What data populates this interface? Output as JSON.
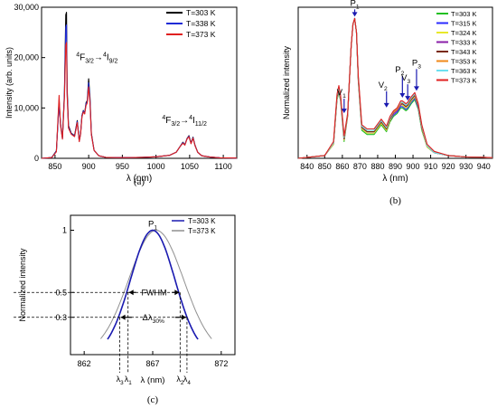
{
  "chart_data": [
    {
      "panel_label": "(a)",
      "type": "line",
      "xlabel": "λ (nm)",
      "ylabel": "Intensity (arb. units)",
      "xlim": [
        830,
        1120
      ],
      "ylim": [
        0,
        30000
      ],
      "xticks": [
        850,
        900,
        950,
        1000,
        1050,
        1100
      ],
      "yticks": [
        0,
        10000,
        20000,
        30000
      ],
      "ytick_labels": [
        "0",
        "10,000",
        "20,000",
        "30,000"
      ],
      "legend_position": "top-right",
      "annotations": [
        {
          "label": "4F3/2→4I9/2",
          "x": 888,
          "y": 19500
        },
        {
          "label": "4F3/2→4I11/2",
          "x": 1045,
          "y": 7000
        }
      ],
      "series": [
        {
          "name": "T=303 K",
          "color": "#000000",
          "x": [
            830,
            845,
            852,
            856,
            858,
            861,
            864,
            866,
            867,
            868,
            870,
            874,
            879,
            883,
            886,
            888,
            890,
            892,
            894,
            896,
            898,
            900,
            902,
            904,
            908,
            915,
            925,
            940,
            960,
            980,
            1000,
            1020,
            1030,
            1035,
            1040,
            1043,
            1046,
            1049,
            1052,
            1055,
            1058,
            1062,
            1068,
            1080,
            1095,
            1120
          ],
          "values": [
            0,
            150,
            1500,
            11500,
            7000,
            4000,
            13000,
            28500,
            29000,
            14000,
            6500,
            5000,
            4500,
            7500,
            3500,
            5000,
            8500,
            9500,
            9000,
            11000,
            11500,
            15800,
            12000,
            5000,
            1600,
            500,
            200,
            150,
            150,
            200,
            300,
            600,
            1200,
            2200,
            3200,
            2700,
            3900,
            4500,
            3000,
            4200,
            2600,
            1200,
            500,
            250,
            100,
            50
          ]
        },
        {
          "name": "T=338 K",
          "color": "#1f2bd6",
          "x": [
            830,
            845,
            852,
            856,
            858,
            861,
            864,
            866,
            867,
            868,
            870,
            874,
            879,
            883,
            886,
            888,
            890,
            892,
            894,
            896,
            898,
            900,
            902,
            904,
            908,
            915,
            925,
            940,
            960,
            980,
            1000,
            1020,
            1030,
            1035,
            1040,
            1043,
            1046,
            1049,
            1052,
            1055,
            1058,
            1062,
            1068,
            1080,
            1095,
            1120
          ],
          "values": [
            0,
            150,
            1400,
            11000,
            6800,
            3900,
            12500,
            26000,
            26500,
            13000,
            6200,
            4900,
            4400,
            7300,
            3400,
            4900,
            8400,
            9400,
            8900,
            10800,
            11300,
            15000,
            11500,
            4800,
            1600,
            500,
            200,
            150,
            150,
            200,
            300,
            600,
            1200,
            2200,
            3100,
            2650,
            3850,
            4400,
            2950,
            4100,
            2550,
            1200,
            500,
            250,
            100,
            50
          ]
        },
        {
          "name": "T=373 K",
          "color": "#e02020",
          "x": [
            830,
            845,
            852,
            856,
            858,
            861,
            864,
            866,
            867,
            868,
            870,
            874,
            879,
            883,
            886,
            888,
            890,
            892,
            894,
            896,
            898,
            900,
            902,
            904,
            908,
            915,
            925,
            940,
            960,
            980,
            1000,
            1020,
            1030,
            1035,
            1040,
            1043,
            1046,
            1049,
            1052,
            1055,
            1058,
            1062,
            1068,
            1080,
            1095,
            1120
          ],
          "values": [
            0,
            150,
            1300,
            12500,
            6600,
            3800,
            12000,
            22500,
            23000,
            12500,
            6000,
            4800,
            4300,
            7100,
            3300,
            4800,
            8200,
            9200,
            8800,
            10500,
            11000,
            14200,
            11000,
            4700,
            1600,
            500,
            200,
            150,
            150,
            200,
            300,
            600,
            1200,
            2200,
            3000,
            2600,
            3800,
            4300,
            2900,
            4000,
            2500,
            1200,
            500,
            250,
            100,
            50
          ]
        }
      ]
    },
    {
      "panel_label": "(b)",
      "type": "line",
      "xlabel": "λ (nm)",
      "ylabel": "Normalized intensity",
      "xlim": [
        835,
        945
      ],
      "ylim": [
        0,
        1.08
      ],
      "xticks": [
        840,
        850,
        860,
        870,
        880,
        890,
        900,
        910,
        920,
        930,
        940
      ],
      "yticks": [],
      "legend_position": "top-right",
      "annotations": [
        {
          "label": "P1",
          "x": 867,
          "y": 1.0
        },
        {
          "label": "V1",
          "x": 861,
          "y": 0.31
        },
        {
          "label": "V2",
          "x": 885,
          "y": 0.35
        },
        {
          "label": "P2",
          "x": 894,
          "y": 0.42
        },
        {
          "label": "V3",
          "x": 897,
          "y": 0.4
        },
        {
          "label": "P3",
          "x": 902,
          "y": 0.47
        }
      ],
      "x": [
        835,
        850,
        855,
        857,
        858,
        859,
        861,
        863,
        865,
        866,
        867,
        868,
        869,
        871,
        874,
        878,
        882,
        885,
        887,
        889,
        891,
        893,
        894,
        895,
        896,
        897,
        898,
        899,
        901,
        903,
        905,
        908,
        912,
        920,
        930,
        945
      ],
      "series": [
        {
          "name": "T=303 K",
          "color": "#22c022",
          "values": [
            0,
            0.02,
            0.1,
            0.42,
            0.47,
            0.41,
            0.12,
            0.3,
            0.8,
            0.96,
            1.0,
            0.9,
            0.55,
            0.2,
            0.17,
            0.17,
            0.24,
            0.19,
            0.26,
            0.3,
            0.32,
            0.36,
            0.36,
            0.35,
            0.34,
            0.35,
            0.37,
            0.39,
            0.42,
            0.35,
            0.2,
            0.08,
            0.04,
            0.02,
            0.01,
            0.005
          ]
        },
        {
          "name": "T=315 K",
          "color": "#2b2bff",
          "values": [
            0,
            0.02,
            0.1,
            0.43,
            0.48,
            0.42,
            0.13,
            0.3,
            0.8,
            0.96,
            1.0,
            0.9,
            0.56,
            0.21,
            0.18,
            0.18,
            0.25,
            0.2,
            0.27,
            0.31,
            0.33,
            0.37,
            0.37,
            0.36,
            0.35,
            0.36,
            0.38,
            0.4,
            0.43,
            0.36,
            0.21,
            0.08,
            0.04,
            0.02,
            0.01,
            0.005
          ]
        },
        {
          "name": "T=324 K",
          "color": "#e8e82a",
          "values": [
            0,
            0.02,
            0.1,
            0.43,
            0.49,
            0.42,
            0.13,
            0.3,
            0.8,
            0.96,
            1.0,
            0.9,
            0.56,
            0.21,
            0.18,
            0.18,
            0.25,
            0.2,
            0.27,
            0.32,
            0.34,
            0.38,
            0.38,
            0.37,
            0.36,
            0.37,
            0.39,
            0.41,
            0.44,
            0.37,
            0.21,
            0.08,
            0.04,
            0.02,
            0.01,
            0.005
          ]
        },
        {
          "name": "T=333 K",
          "color": "#8a1fa8",
          "values": [
            0,
            0.02,
            0.11,
            0.44,
            0.49,
            0.43,
            0.14,
            0.31,
            0.8,
            0.96,
            1.0,
            0.9,
            0.57,
            0.22,
            0.19,
            0.19,
            0.26,
            0.21,
            0.28,
            0.32,
            0.34,
            0.38,
            0.39,
            0.38,
            0.37,
            0.38,
            0.4,
            0.42,
            0.45,
            0.37,
            0.22,
            0.09,
            0.04,
            0.02,
            0.01,
            0.005
          ]
        },
        {
          "name": "T=343 K",
          "color": "#7a2a10",
          "values": [
            0,
            0.02,
            0.11,
            0.44,
            0.5,
            0.43,
            0.14,
            0.31,
            0.8,
            0.96,
            1.0,
            0.9,
            0.57,
            0.22,
            0.19,
            0.19,
            0.26,
            0.21,
            0.28,
            0.33,
            0.35,
            0.39,
            0.39,
            0.38,
            0.37,
            0.38,
            0.4,
            0.42,
            0.45,
            0.38,
            0.22,
            0.09,
            0.04,
            0.02,
            0.01,
            0.005
          ]
        },
        {
          "name": "T=353 K",
          "color": "#f08a1a",
          "values": [
            0,
            0.02,
            0.11,
            0.45,
            0.5,
            0.44,
            0.15,
            0.31,
            0.8,
            0.96,
            1.0,
            0.9,
            0.58,
            0.23,
            0.2,
            0.2,
            0.27,
            0.22,
            0.29,
            0.33,
            0.35,
            0.39,
            0.4,
            0.39,
            0.38,
            0.39,
            0.41,
            0.43,
            0.46,
            0.38,
            0.23,
            0.09,
            0.04,
            0.02,
            0.01,
            0.005
          ]
        },
        {
          "name": "T=363 K",
          "color": "#6de0f0",
          "values": [
            0,
            0.02,
            0.11,
            0.45,
            0.51,
            0.44,
            0.15,
            0.32,
            0.8,
            0.96,
            1.0,
            0.9,
            0.58,
            0.23,
            0.2,
            0.2,
            0.27,
            0.22,
            0.29,
            0.34,
            0.36,
            0.4,
            0.4,
            0.39,
            0.38,
            0.39,
            0.41,
            0.43,
            0.46,
            0.39,
            0.23,
            0.09,
            0.04,
            0.02,
            0.01,
            0.005
          ]
        },
        {
          "name": "T=373 K",
          "color": "#e02020",
          "values": [
            0,
            0.02,
            0.12,
            0.46,
            0.52,
            0.45,
            0.16,
            0.32,
            0.8,
            0.96,
            1.0,
            0.9,
            0.59,
            0.24,
            0.21,
            0.21,
            0.28,
            0.23,
            0.3,
            0.34,
            0.36,
            0.41,
            0.41,
            0.4,
            0.39,
            0.4,
            0.42,
            0.44,
            0.47,
            0.39,
            0.24,
            0.1,
            0.05,
            0.02,
            0.01,
            0.005
          ]
        }
      ]
    },
    {
      "panel_label": "(c)",
      "type": "line",
      "xlabel": "λ (nm)",
      "ylabel": "Normalized intensity",
      "xlim": [
        861,
        873
      ],
      "ylim": [
        0,
        1.12
      ],
      "xticks": [
        862,
        867,
        872
      ],
      "yticks": [
        0.3,
        0.5,
        1
      ],
      "ytick_labels": [
        "0.3",
        "0.5",
        "1"
      ],
      "legend_position": "top-right",
      "peak_label": "P1",
      "fwhm_label": "FWHM",
      "delta_label": "Δλ30%",
      "marker_labels": [
        "λ3",
        "λ1",
        "λ2",
        "λ4"
      ],
      "marker_x": [
        864.6,
        865.2,
        869.0,
        869.5
      ],
      "series": [
        {
          "name": "T=303 K",
          "color": "#1a1ab0",
          "center": 867.0,
          "fwhm": 3.8
        },
        {
          "name": "T=373 K",
          "color": "#909090",
          "center": 867.25,
          "fwhm": 4.7
        }
      ]
    }
  ]
}
